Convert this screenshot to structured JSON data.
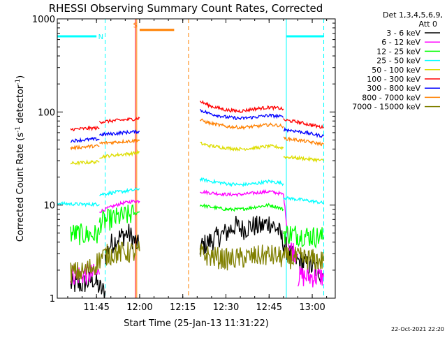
{
  "chart_data": {
    "type": "line",
    "title": "RHESSI Observing Summary Count Rates, Corrected",
    "xlabel": "Start Time (25-Jan-13 11:31:22)",
    "ylabel": "Corrected Count Rate (s",
    "ylabel_sup1": "-1",
    "ylabel_mid": " detector",
    "ylabel_sup2": "-1",
    "ylabel_end": ")",
    "y_scale": "log",
    "xlim": [
      "11:31:22",
      "13:08:00"
    ],
    "ylim": [
      1,
      1000
    ],
    "x_ticks": [
      {
        "t": "11:45",
        "label": "11:45"
      },
      {
        "t": "12:00",
        "label": "12:00"
      },
      {
        "t": "12:15",
        "label": "12:15"
      },
      {
        "t": "12:30",
        "label": "12:30"
      },
      {
        "t": "12:45",
        "label": "12:45"
      },
      {
        "t": "13:00",
        "label": "13:00"
      }
    ],
    "y_ticks": [
      {
        "v": 1,
        "label": "1"
      },
      {
        "v": 10,
        "label": "10"
      },
      {
        "v": 100,
        "label": "100"
      },
      {
        "v": 1000,
        "label": "1000"
      }
    ],
    "legend": {
      "position": "right",
      "header": [
        "Det 1,3,4,5,6,9,",
        "Att 0"
      ]
    },
    "series": [
      {
        "name": "3 - 6 keV",
        "color": "#000000",
        "segments": [
          {
            "x": [
              "11:36",
              "11:40",
              "11:44",
              "11:46",
              "11:47",
              "11:48"
            ],
            "y": [
              1.4,
              1.4,
              1.6,
              1.3,
              1.2,
              1.2
            ]
          },
          {
            "x": [
              "11:48",
              "11:50",
              "11:53",
              "11:56",
              "11:58",
              "12:00"
            ],
            "y": [
              2.8,
              3.8,
              4.5,
              5.0,
              4.2,
              3.5
            ]
          },
          {
            "x": [
              "12:21",
              "12:24",
              "12:27",
              "12:30",
              "12:33",
              "12:36",
              "12:39",
              "12:42",
              "12:45",
              "12:48",
              "12:50",
              "12:52",
              "12:55",
              "12:58",
              "13:02",
              "13:04"
            ],
            "y": [
              3.5,
              4.0,
              4.5,
              5.0,
              6.0,
              5.5,
              6.0,
              5.8,
              6.5,
              5.5,
              4.0,
              3.0,
              2.5,
              2.3,
              2.0,
              1.8
            ]
          }
        ]
      },
      {
        "name": "6 - 12 keV",
        "color": "#ff00ff",
        "segments": [
          {
            "x": [
              "11:36",
              "11:40",
              "11:44",
              "11:46"
            ],
            "y": [
              1.8,
              1.8,
              1.8,
              1.8
            ]
          },
          {
            "x": [
              "11:46",
              "11:50",
              "11:54",
              "11:58",
              "12:00"
            ],
            "y": [
              8.5,
              9.5,
              10.5,
              11.0,
              11.0
            ]
          },
          {
            "x": [
              "12:21",
              "12:25",
              "12:30",
              "12:35",
              "12:40",
              "12:45",
              "12:48",
              "12:50",
              "12:52",
              "12:55"
            ],
            "y": [
              14.0,
              13.5,
              13.0,
              13.0,
              13.5,
              14.0,
              13.5,
              13.0,
              3.5,
              3.0
            ]
          },
          {
            "x": [
              "12:55",
              "12:58",
              "13:02",
              "13:04"
            ],
            "y": [
              1.7,
              1.7,
              1.7,
              1.7
            ]
          }
        ]
      },
      {
        "name": "12 - 25 keV",
        "color": "#00ff00",
        "segments": [
          {
            "x": [
              "11:36",
              "11:40",
              "11:44",
              "11:46"
            ],
            "y": [
              5.0,
              4.8,
              4.8,
              4.8
            ]
          },
          {
            "x": [
              "11:46",
              "11:50",
              "11:54",
              "11:58",
              "12:00"
            ],
            "y": [
              6.5,
              7.0,
              7.5,
              8.0,
              8.5
            ]
          },
          {
            "x": [
              "12:21",
              "12:25",
              "12:30",
              "12:35",
              "12:40",
              "12:45",
              "12:48",
              "12:50"
            ],
            "y": [
              10.0,
              9.5,
              9.0,
              9.0,
              9.5,
              10.0,
              9.5,
              9.0
            ]
          },
          {
            "x": [
              "12:50",
              "12:55",
              "13:00",
              "13:04"
            ],
            "y": [
              5.0,
              4.8,
              4.6,
              4.5
            ]
          }
        ]
      },
      {
        "name": "25 - 50 keV",
        "color": "#00ffff",
        "segments": [
          {
            "x": [
              "11:31:22",
              "11:35",
              "11:40",
              "11:45",
              "11:46"
            ],
            "y": [
              10.5,
              10.3,
              10.2,
              10.2,
              10.2
            ]
          },
          {
            "x": [
              "11:46",
              "11:50",
              "11:54",
              "11:58",
              "12:00"
            ],
            "y": [
              13.0,
              13.5,
              14.0,
              14.5,
              15.0
            ]
          },
          {
            "x": [
              "12:21",
              "12:25",
              "12:30",
              "12:35",
              "12:40",
              "12:45",
              "12:48",
              "12:50"
            ],
            "y": [
              19.0,
              18.0,
              17.0,
              16.5,
              17.0,
              18.0,
              17.5,
              17.0
            ]
          },
          {
            "x": [
              "12:50",
              "12:55",
              "13:00",
              "13:04"
            ],
            "y": [
              12.0,
              11.5,
              11.0,
              10.5
            ]
          }
        ]
      },
      {
        "name": "50 - 100 keV",
        "color": "#dddd00",
        "segments": [
          {
            "x": [
              "11:36",
              "11:40",
              "11:44",
              "11:46"
            ],
            "y": [
              28.0,
              28.5,
              29.0,
              29.0
            ]
          },
          {
            "x": [
              "11:46",
              "11:50",
              "11:54",
              "11:58",
              "12:00"
            ],
            "y": [
              33.0,
              34.0,
              35.0,
              36.0,
              37.0
            ]
          },
          {
            "x": [
              "12:21",
              "12:25",
              "12:30",
              "12:35",
              "12:40",
              "12:45",
              "12:48",
              "12:50"
            ],
            "y": [
              46.0,
              43.0,
              41.0,
              40.0,
              41.0,
              43.0,
              42.0,
              41.0
            ]
          },
          {
            "x": [
              "12:50",
              "12:55",
              "13:00",
              "13:04"
            ],
            "y": [
              33.0,
              32.0,
              31.0,
              30.0
            ]
          }
        ]
      },
      {
        "name": "100 - 300 keV",
        "color": "#ff0000",
        "segments": [
          {
            "x": [
              "11:36",
              "11:40",
              "11:44",
              "11:46"
            ],
            "y": [
              65.0,
              66.0,
              67.0,
              67.0
            ]
          },
          {
            "x": [
              "11:46",
              "11:50",
              "11:54",
              "11:58",
              "12:00"
            ],
            "y": [
              78.0,
              80.0,
              82.0,
              84.0,
              86.0
            ]
          },
          {
            "x": [
              "12:21",
              "12:25",
              "12:30",
              "12:35",
              "12:40",
              "12:45",
              "12:48",
              "12:50"
            ],
            "y": [
              130.0,
              115.0,
              105.0,
              102.0,
              108.0,
              112.0,
              110.0,
              108.0
            ]
          },
          {
            "x": [
              "12:50",
              "12:55",
              "13:00",
              "13:04"
            ],
            "y": [
              82.0,
              78.0,
              72.0,
              68.0
            ]
          }
        ]
      },
      {
        "name": "300 - 800 keV",
        "color": "#0000ff",
        "segments": [
          {
            "x": [
              "11:36",
              "11:40",
              "11:44",
              "11:46"
            ],
            "y": [
              49.0,
              50.0,
              51.0,
              51.0
            ]
          },
          {
            "x": [
              "11:46",
              "11:50",
              "11:54",
              "11:58",
              "12:00"
            ],
            "y": [
              57.0,
              58.0,
              60.0,
              61.0,
              62.0
            ]
          },
          {
            "x": [
              "12:21",
              "12:25",
              "12:30",
              "12:35",
              "12:40",
              "12:45",
              "12:48",
              "12:50"
            ],
            "y": [
              105.0,
              95.0,
              88.0,
              85.0,
              88.0,
              92.0,
              90.0,
              88.0
            ]
          },
          {
            "x": [
              "12:50",
              "12:55",
              "13:00",
              "13:04"
            ],
            "y": [
              65.0,
              62.0,
              58.0,
              55.0
            ]
          }
        ]
      },
      {
        "name": "800 - 7000 keV",
        "color": "#ff8000",
        "segments": [
          {
            "x": [
              "11:36",
              "11:40",
              "11:44",
              "11:46"
            ],
            "y": [
              41.0,
              42.0,
              43.0,
              43.0
            ]
          },
          {
            "x": [
              "11:46",
              "11:50",
              "11:54",
              "11:58",
              "12:00"
            ],
            "y": [
              46.0,
              47.0,
              48.0,
              49.0,
              50.0
            ]
          },
          {
            "x": [
              "12:21",
              "12:25",
              "12:30",
              "12:35",
              "12:40",
              "12:45",
              "12:48",
              "12:50"
            ],
            "y": [
              82.0,
              75.0,
              70.0,
              68.0,
              70.0,
              73.0,
              72.0,
              70.0
            ]
          },
          {
            "x": [
              "12:50",
              "12:55",
              "13:00",
              "13:04"
            ],
            "y": [
              52.0,
              50.0,
              47.0,
              45.0
            ]
          }
        ]
      },
      {
        "name": "7000 - 15000 keV",
        "color": "#808000",
        "segments": [
          {
            "x": [
              "11:36",
              "11:40",
              "11:44",
              "11:47",
              "11:50",
              "11:54",
              "11:58",
              "12:00"
            ],
            "y": [
              1.9,
              1.9,
              2.2,
              2.8,
              3.0,
              3.1,
              3.1,
              3.2
            ]
          },
          {
            "x": [
              "12:21",
              "12:25",
              "12:30",
              "12:35",
              "12:40",
              "12:45",
              "12:48",
              "12:50",
              "12:55",
              "13:00",
              "13:04"
            ],
            "y": [
              3.0,
              2.8,
              2.6,
              2.7,
              2.8,
              2.9,
              2.8,
              2.7,
              2.7,
              2.6,
              2.5
            ]
          }
        ]
      }
    ],
    "annotations": [
      {
        "type": "level",
        "x": [
          "11:31:22",
          "11:45"
        ],
        "y": 650,
        "color": "#00ffff"
      },
      {
        "type": "level",
        "x": [
          "12:51",
          "13:04"
        ],
        "y": 650,
        "color": "#00ffff"
      },
      {
        "type": "level",
        "x": [
          "12:00",
          "12:12"
        ],
        "y": 760,
        "color": "#ff8000"
      },
      {
        "type": "vline",
        "x": "11:48",
        "color": "#00ffff",
        "style": "dashed"
      },
      {
        "type": "vline",
        "x": "11:59",
        "color": "#ff8000",
        "style": "solid"
      },
      {
        "type": "vline",
        "x": "12:17",
        "color": "#ff8000",
        "style": "dashed"
      },
      {
        "type": "vline",
        "x": "12:51",
        "color": "#00ffff",
        "style": "solid"
      },
      {
        "type": "vline",
        "x": "13:04",
        "color": "#00ffff",
        "style": "dashed"
      },
      {
        "type": "vline",
        "x": "11:58:30",
        "color": "#ff0000",
        "style": "solid"
      },
      {
        "type": "label",
        "x": "11:46:30",
        "y": 650,
        "text": "N",
        "color": "#00ffff"
      },
      {
        "type": "label",
        "x": "11:58:30",
        "y": 860,
        "text": "S",
        "color": "#ff8000"
      }
    ],
    "footer_timestamp": "22-Oct-2021 22:20"
  }
}
